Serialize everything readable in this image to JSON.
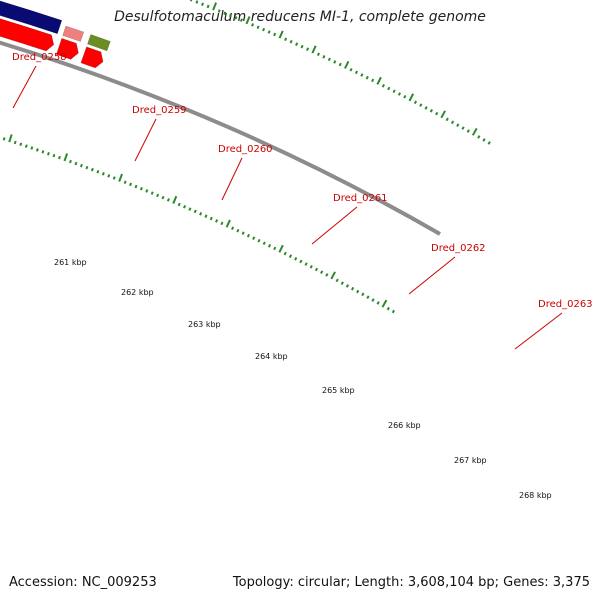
{
  "header": {
    "title": "Desulfotomaculum reducens MI-1, complete genome"
  },
  "footer": {
    "accession": "Accession: NC_009253",
    "summary": "Topology: circular; Length: 3,608,104 bp; Genes: 3,375"
  },
  "colors": {
    "cds": "#ff0000",
    "backbone": "#8c8c8c",
    "label": "#cc0000",
    "tick": "#2b8a2b",
    "tick_label": "#111111"
  },
  "genes": [
    {
      "name": "Dred_0258",
      "color": "#33cc33"
    },
    {
      "name": "Dred_0259",
      "color": "#4a7fb5"
    },
    {
      "name": "Dred_0260",
      "color": "#4a7fb5"
    },
    {
      "name": "Dred_0261",
      "color": "#1ab3e6"
    },
    {
      "name": "Dred_0262",
      "color": "#1a1aee"
    },
    {
      "name": "Dred_0263",
      "color": "#0a0a73"
    }
  ],
  "extra_features": [
    {
      "color": "#f59a1e"
    },
    {
      "color": "#f08080"
    },
    {
      "color": "#6b8e23"
    }
  ],
  "scale_labels": [
    "261 kbp",
    "262 kbp",
    "263 kbp",
    "264 kbp",
    "265 kbp",
    "266 kbp",
    "267 kbp",
    "268 kbp"
  ]
}
